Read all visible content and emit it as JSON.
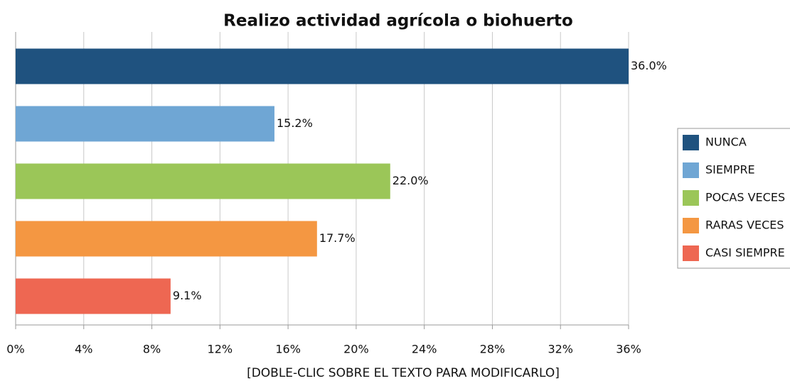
{
  "chart_data": {
    "type": "bar",
    "orientation": "horizontal",
    "title": "Realizo actividad agrícola o biohuerto",
    "x_label": "[DOBLE-CLIC SOBRE EL TEXTO PARA MODIFICARLO]",
    "categories": [
      "NUNCA",
      "SIEMPRE",
      "POCAS VECES",
      "RARAS VECES",
      "CASI SIEMPRE"
    ],
    "values": [
      36.0,
      15.2,
      22.0,
      17.7,
      9.1
    ],
    "value_labels": [
      "36.0%",
      "15.2%",
      "22.0%",
      "17.7%",
      "9.1%"
    ],
    "colors": [
      "#1f527f",
      "#6fa6d4",
      "#9bc658",
      "#f49742",
      "#ee6752"
    ],
    "xlim": [
      0,
      36
    ],
    "xticks": [
      {
        "value": 0,
        "label": "0%"
      },
      {
        "value": 4,
        "label": "4%"
      },
      {
        "value": 8,
        "label": "8%"
      },
      {
        "value": 12,
        "label": "12%"
      },
      {
        "value": 16,
        "label": "16%"
      },
      {
        "value": 20,
        "label": "20%"
      },
      {
        "value": 24,
        "label": "24%"
      },
      {
        "value": 28,
        "label": "28%"
      },
      {
        "value": 32,
        "label": "32%"
      },
      {
        "value": 36,
        "label": "36%"
      }
    ],
    "grid": true,
    "legend": "right"
  }
}
